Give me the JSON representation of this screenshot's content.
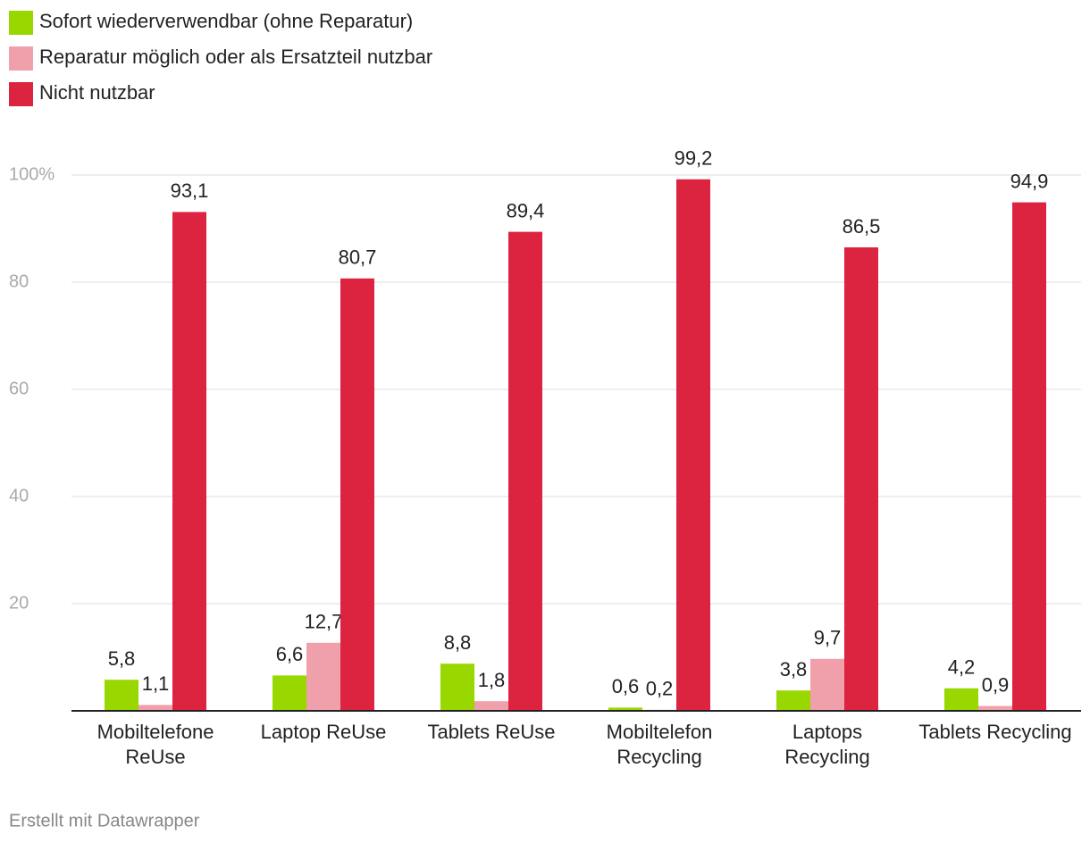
{
  "chart_data": {
    "type": "bar",
    "categories": [
      "Mobiltelefone ReUse",
      "Laptop ReUse",
      "Tablets ReUse",
      "Mobiltelefon Recycling",
      "Laptops Recycling",
      "Tablets Recycling"
    ],
    "series": [
      {
        "name": "Sofort wiederverwendbar (ohne Reparatur)",
        "color": "#99d700",
        "values": [
          5.8,
          6.6,
          8.8,
          0.6,
          3.8,
          4.2
        ],
        "value_labels": [
          "5,8",
          "6,6",
          "8,8",
          "0,6",
          "3,8",
          "4,2"
        ]
      },
      {
        "name": "Reparatur möglich oder als Ersatzteil nutzbar",
        "color": "#f0a0aa",
        "values": [
          1.1,
          12.7,
          1.8,
          0.2,
          9.7,
          0.9
        ],
        "value_labels": [
          "1,1",
          "12,7",
          "1,8",
          "0,2",
          "9,7",
          "0,9"
        ]
      },
      {
        "name": "Nicht nutzbar",
        "color": "#dc2340",
        "values": [
          93.1,
          80.7,
          89.4,
          99.2,
          86.5,
          94.9
        ],
        "value_labels": [
          "93,1",
          "80,7",
          "89,4",
          "99,2",
          "86,5",
          "94,9"
        ]
      }
    ],
    "ylim": [
      0,
      100
    ],
    "yticks": [
      20,
      40,
      60,
      80,
      {
        "value": 100,
        "label": "100%"
      }
    ],
    "grid": true,
    "legend": "top-left",
    "footer": "Erstellt mit Datawrapper"
  }
}
